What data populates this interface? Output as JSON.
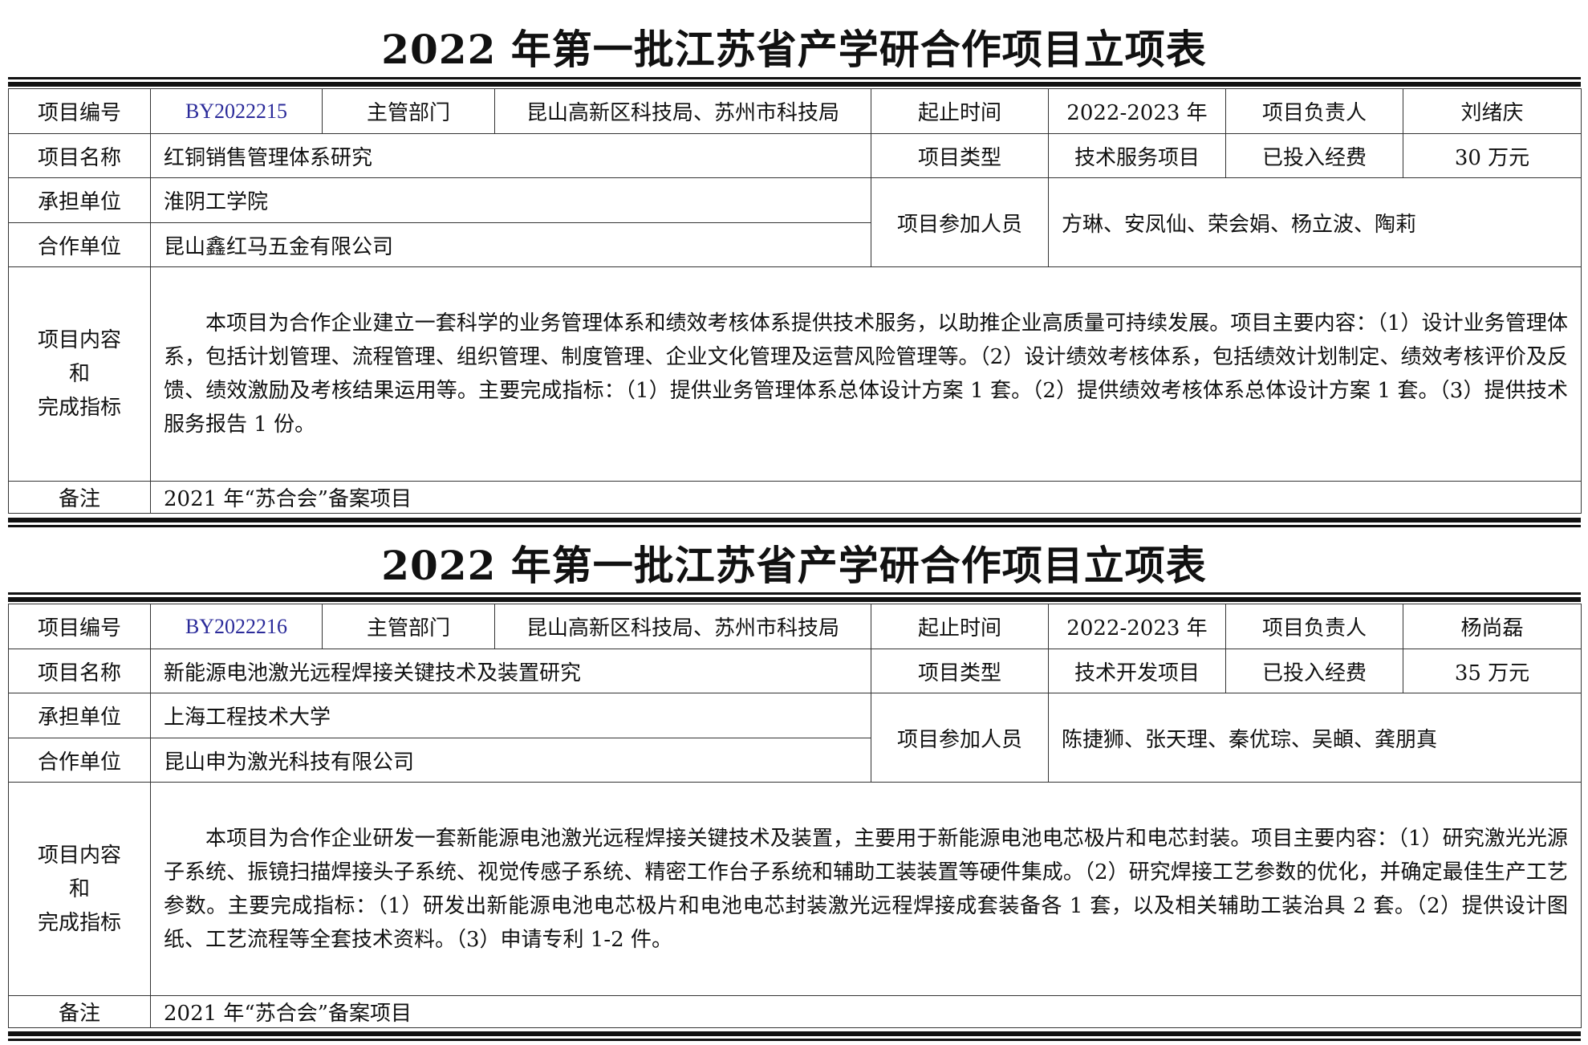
{
  "labels": {
    "code": "项目编号",
    "department": "主管部门",
    "period": "起止时间",
    "leader": "项目负责人",
    "name": "项目名称",
    "type": "项目类型",
    "funding": "已投入经费",
    "undertaker": "承担单位",
    "partner": "合作单位",
    "participants": "项目参加人员",
    "content_line1": "项目内容",
    "content_line2": "和",
    "content_line3": "完成指标",
    "remark": "备注"
  },
  "forms": [
    {
      "title": "2022 年第一批江苏省产学研合作项目立项表",
      "code": "BY2022215",
      "department": "昆山高新区科技局、苏州市科技局",
      "period": "2022-2023 年",
      "leader": "刘绪庆",
      "name": "红铜销售管理体系研究",
      "type": "技术服务项目",
      "funding": "30 万元",
      "undertaker": "淮阴工学院",
      "partner": "昆山鑫红马五金有限公司",
      "participants": "方琳、安凤仙、荣会娟、杨立波、陶莉",
      "content": "本项目为合作企业建立一套科学的业务管理体系和绩效考核体系提供技术服务，以助推企业高质量可持续发展。项目主要内容：（1）设计业务管理体系，包括计划管理、流程管理、组织管理、制度管理、企业文化管理及运营风险管理等。（2）设计绩效考核体系，包括绩效计划制定、绩效考核评价及反馈、绩效激励及考核结果运用等。主要完成指标：（1）提供业务管理体系总体设计方案 1 套。（2）提供绩效考核体系总体设计方案 1 套。（3）提供技术服务报告 1 份。",
      "remark": "2021 年“苏合会”备案项目"
    },
    {
      "title": "2022 年第一批江苏省产学研合作项目立项表",
      "code": "BY2022216",
      "department": "昆山高新区科技局、苏州市科技局",
      "period": "2022-2023 年",
      "leader": "杨尚磊",
      "name": "新能源电池激光远程焊接关键技术及装置研究",
      "type": "技术开发项目",
      "funding": "35 万元",
      "undertaker": "上海工程技术大学",
      "partner": "昆山申为激光科技有限公司",
      "participants": "陈捷狮、张天理、秦优琮、吴頔、龚朋真",
      "content": "本项目为合作企业研发一套新能源电池激光远程焊接关键技术及装置，主要用于新能源电池电芯极片和电芯封装。项目主要内容：（1）研究激光光源子系统、振镜扫描焊接头子系统、视觉传感子系统、精密工作台子系统和辅助工装装置等硬件集成。（2）研究焊接工艺参数的优化，并确定最佳生产工艺参数。主要完成指标：（1）研发出新能源电池电芯极片和电池电芯封装激光远程焊接成套装备各 1 套，以及相关辅助工装治具 2 套。（2）提供设计图纸、工艺流程等全套技术资料。（3）申请专利 1-2 件。",
      "remark": "2021 年“苏合会”备案项目"
    }
  ]
}
